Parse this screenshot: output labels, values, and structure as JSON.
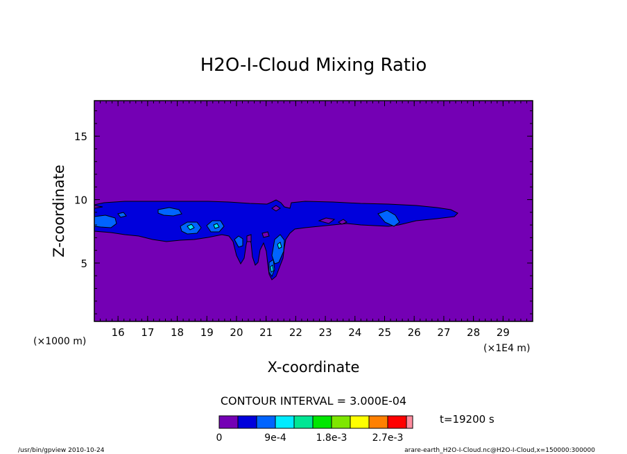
{
  "chart_data": {
    "type": "heatmap",
    "title": "H2O-I-Cloud Mixing Ratio",
    "xlabel": "X-coordinate",
    "ylabel": "Z-coordinate",
    "x_unit_left": "(×1000 m)",
    "x_unit_right": "(×1E4 m)",
    "xlim": [
      15.2,
      30.0
    ],
    "ylim": [
      0.4,
      17.8
    ],
    "x_ticks": [
      "16",
      "17",
      "18",
      "19",
      "20",
      "21",
      "22",
      "23",
      "24",
      "25",
      "26",
      "27",
      "28",
      "29"
    ],
    "x_tick_values": [
      16,
      17,
      18,
      19,
      20,
      21,
      22,
      23,
      24,
      25,
      26,
      27,
      28,
      29
    ],
    "y_ticks": [
      "5",
      "10",
      "15"
    ],
    "y_tick_values": [
      5,
      10,
      15
    ],
    "contour_interval": "CONTOUR INTERVAL = 3.000E-04",
    "time_label": "t=19200 s",
    "colorbar": {
      "colors": [
        "#7400b4",
        "#0000dc",
        "#0064ff",
        "#00ebff",
        "#00e694",
        "#00e600",
        "#7ee600",
        "#ffff00",
        "#ff8000",
        "#ff0000",
        "#ff8c9e"
      ],
      "labels": [
        "0",
        "9e-4",
        "1.8e-3",
        "2.7e-3"
      ],
      "label_positions": [
        0,
        3,
        6,
        9
      ]
    },
    "cloud_levels": [
      {
        "level": "0–3e-4",
        "color": "#7400b4",
        "region": "background"
      },
      {
        "level": "3e-4–6e-4",
        "color": "#0000dc",
        "region": "main layer z≈6.5–9.7, x≈15.2–27.3"
      },
      {
        "level": "6e-4–9e-4",
        "color": "#0064ff",
        "region": "embedded patches"
      },
      {
        "level": "9e-4–1.2e-3",
        "color": "#00ebff",
        "region": "small cores"
      }
    ]
  },
  "footer": {
    "left": "/usr/bin/gpview   2010-10-24",
    "right": "arare-earth_H2O-I-Cloud.nc@H2O-I-Cloud,x=150000:300000"
  }
}
